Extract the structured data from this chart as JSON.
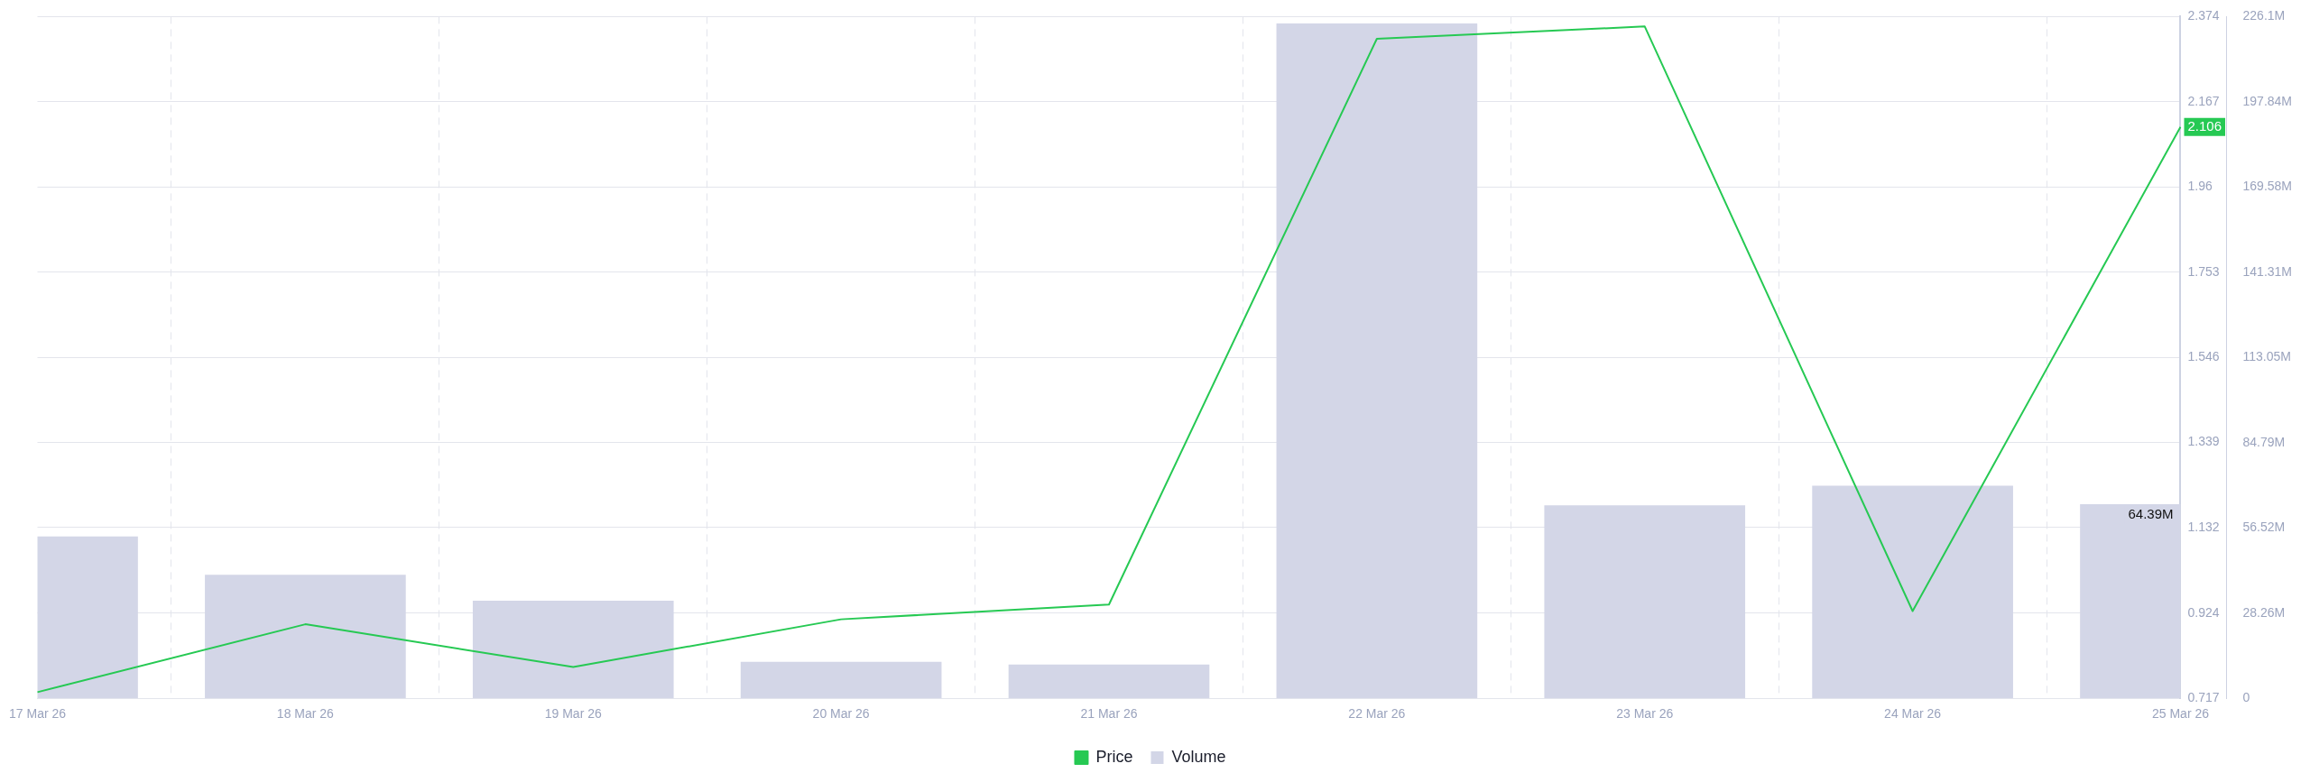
{
  "chart_data": {
    "type": "line",
    "categories": [
      "17 Mar 26",
      "18 Mar 26",
      "19 Mar 26",
      "20 Mar 26",
      "21 Mar 26",
      "22 Mar 26",
      "23 Mar 26",
      "24 Mar 26",
      "25 Mar 26"
    ],
    "series": [
      {
        "name": "Price",
        "color": "#26c953",
        "values": [
          0.732,
          0.897,
          0.793,
          0.909,
          0.945,
          2.32,
          2.35,
          0.929,
          2.106
        ],
        "value_labels": [
          null,
          null,
          null,
          null,
          null,
          null,
          null,
          null,
          "2.106"
        ]
      },
      {
        "name": "Volume",
        "type": "bar",
        "axis": "y2",
        "color": "#d3d6e7",
        "values": [
          53.7,
          41.0,
          32.4,
          12.1,
          11.2,
          223.8,
          64.0,
          70.5,
          64.39
        ],
        "value_labels": [
          null,
          null,
          null,
          null,
          null,
          null,
          null,
          null,
          "64.39M"
        ]
      }
    ],
    "ylim": [
      0.717,
      2.374
    ],
    "yticks": [
      0.717,
      0.924,
      1.132,
      1.339,
      1.546,
      1.753,
      1.96,
      2.167,
      2.374
    ],
    "y2lim": [
      0,
      226.1
    ],
    "y2ticks": [
      0,
      {
        "value": 28.26,
        "label": "28.26M"
      },
      {
        "value": 56.52,
        "label": "56.52M"
      },
      {
        "value": 84.79,
        "label": "84.79M"
      },
      {
        "value": 113.05,
        "label": "113.05M"
      },
      {
        "value": 141.31,
        "label": "141.31M"
      },
      {
        "value": 169.58,
        "label": "169.58M"
      },
      {
        "value": 197.84,
        "label": "197.84M"
      },
      {
        "value": 226.1,
        "label": "226.1M"
      }
    ],
    "grid": true,
    "legend": "bottom",
    "marker": "none",
    "line_style": "solid"
  }
}
